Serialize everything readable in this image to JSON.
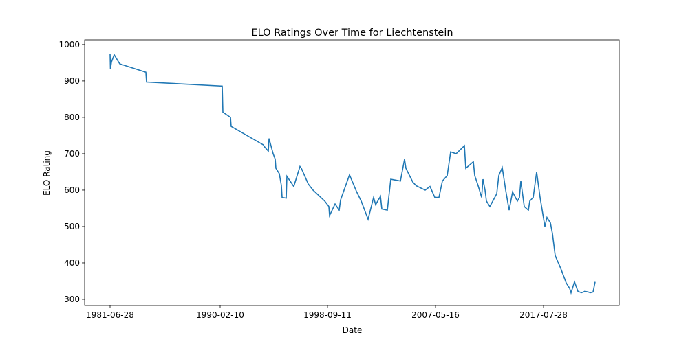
{
  "chart_data": {
    "type": "line",
    "title": "ELO Ratings Over Time for Liechtenstein",
    "x_label": "Date",
    "y_label": "ELO Rating",
    "x": [
      0,
      0.5,
      2,
      6,
      14,
      52,
      53,
      163,
      164,
      175,
      176,
      223,
      224,
      230,
      231,
      237,
      240,
      241,
      246,
      249,
      250,
      256,
      257,
      267,
      276,
      278,
      288,
      295,
      312,
      318,
      319,
      327,
      333,
      335,
      348,
      358,
      365,
      375,
      383,
      386,
      393,
      395,
      403,
      408,
      422,
      428,
      430,
      440,
      445,
      458,
      465,
      472,
      478,
      481,
      483,
      490,
      495,
      503,
      515,
      517,
      528,
      530,
      535,
      540,
      542,
      545,
      547,
      552,
      562,
      565,
      570,
      573,
      575,
      580,
      585,
      592,
      595,
      597,
      602,
      608,
      610,
      615,
      620,
      625,
      632,
      635,
      640,
      643,
      647,
      655,
      660,
      663,
      668,
      670,
      675,
      680,
      685,
      688,
      690,
      695,
      698,
      702,
      705
    ],
    "series": [
      {
        "name": "ELO Rating",
        "color": "#1f77b4",
        "values": [
          975,
          932,
          952,
          972,
          947,
          924,
          897,
          886,
          814,
          800,
          775,
          724,
          720,
          707,
          742,
          700,
          685,
          660,
          645,
          612,
          580,
          578,
          638,
          610,
          665,
          660,
          617,
          600,
          570,
          555,
          530,
          562,
          545,
          573,
          642,
          597,
          570,
          520,
          580,
          560,
          583,
          548,
          545,
          630,
          625,
          685,
          660,
          622,
          612,
          600,
          610,
          580,
          580,
          607,
          625,
          640,
          705,
          700,
          722,
          660,
          678,
          640,
          612,
          580,
          630,
          600,
          570,
          555,
          590,
          640,
          662,
          625,
          600,
          545,
          595,
          570,
          580,
          625,
          555,
          545,
          570,
          580,
          650,
          580,
          500,
          525,
          510,
          480,
          420,
          385,
          360,
          345,
          330,
          318,
          348,
          322,
          318,
          320,
          322,
          320,
          318,
          320,
          348
        ]
      }
    ],
    "xlim": [
      -37,
      740
    ],
    "ylim": [
      283,
      1013
    ],
    "xticks": [
      {
        "value": 0,
        "label": "1981-06-28"
      },
      {
        "value": 160,
        "label": "1990-02-10"
      },
      {
        "value": 316,
        "label": "1998-09-11"
      },
      {
        "value": 473,
        "label": "2007-05-16"
      },
      {
        "value": 630,
        "label": "2017-07-28"
      }
    ],
    "yticks": [
      300,
      400,
      500,
      600,
      700,
      800,
      900,
      1000
    ],
    "grid": false
  }
}
